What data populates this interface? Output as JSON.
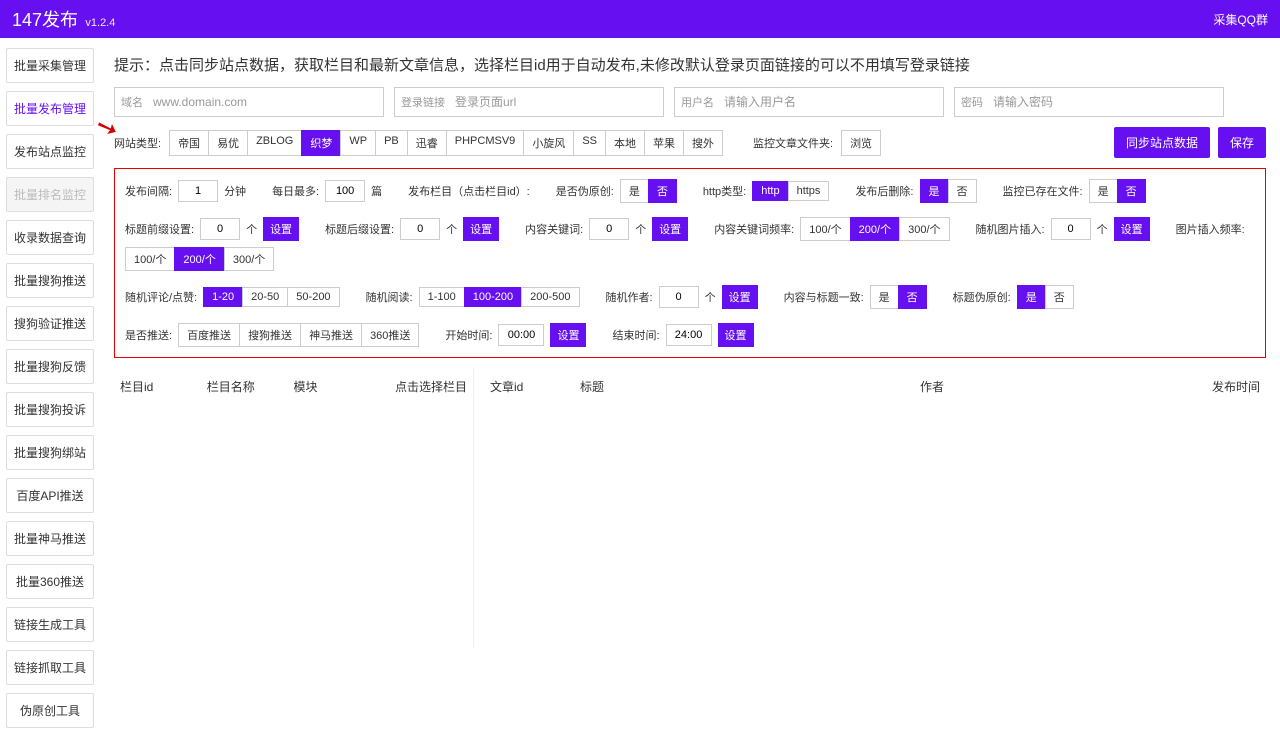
{
  "colors": {
    "primary": "#6610f2",
    "border": "#cccccc",
    "redBox": "#e60000"
  },
  "header": {
    "title": "147发布",
    "version": "v1.2.4",
    "right": "采集QQ群"
  },
  "sidebar": {
    "items": [
      {
        "label": "批量采集管理",
        "state": ""
      },
      {
        "label": "批量发布管理",
        "state": "active"
      },
      {
        "label": "发布站点监控",
        "state": ""
      },
      {
        "label": "批量排名监控",
        "state": "disabled"
      },
      {
        "label": "收录数据查询",
        "state": ""
      },
      {
        "label": "批量搜狗推送",
        "state": ""
      },
      {
        "label": "搜狗验证推送",
        "state": ""
      },
      {
        "label": "批量搜狗反馈",
        "state": ""
      },
      {
        "label": "批量搜狗投诉",
        "state": ""
      },
      {
        "label": "批量搜狗绑站",
        "state": ""
      },
      {
        "label": "百度API推送",
        "state": ""
      },
      {
        "label": "批量神马推送",
        "state": ""
      },
      {
        "label": "批量360推送",
        "state": ""
      },
      {
        "label": "链接生成工具",
        "state": ""
      },
      {
        "label": "链接抓取工具",
        "state": ""
      },
      {
        "label": "伪原创工具",
        "state": ""
      }
    ]
  },
  "hint": "提示：点击同步站点数据，获取栏目和最新文章信息，选择栏目id用于自动发布,未修改默认登录页面链接的可以不用填写登录链接",
  "inputs": {
    "domain": {
      "lbl": "域名",
      "ph": "www.domain.com"
    },
    "login": {
      "lbl": "登录链接",
      "ph": "登录页面url"
    },
    "user": {
      "lbl": "用户名",
      "ph": "请输入用户名"
    },
    "pass": {
      "lbl": "密码",
      "ph": "请输入密码"
    }
  },
  "siteType": {
    "label": "网站类型:",
    "opts": [
      "帝国",
      "易优",
      "ZBLOG",
      "织梦",
      "WP",
      "PB",
      "迅睿",
      "PHPCMSV9",
      "小旋风",
      "SS",
      "本地",
      "苹果",
      "搜外"
    ],
    "active": "织梦"
  },
  "monitorFolder": {
    "label": "监控文章文件夹:",
    "btn": "浏览"
  },
  "actions": {
    "sync": "同步站点数据",
    "save": "保存"
  },
  "cfg1": {
    "interval": {
      "lbl": "发布间隔:",
      "val": "1",
      "unit": "分钟"
    },
    "dailyMax": {
      "lbl": "每日最多:",
      "val": "100",
      "unit": "篇"
    },
    "colId": {
      "lbl": "发布栏目（点击栏目id）:"
    },
    "fakeOrig": {
      "lbl": "是否伪原创:",
      "opts": [
        "是",
        "否"
      ],
      "active": "否"
    },
    "httpType": {
      "lbl": "http类型:",
      "opts": [
        "http",
        "https"
      ],
      "active": "http"
    },
    "delAfter": {
      "lbl": "发布后删除:",
      "opts": [
        "是",
        "否"
      ],
      "active": "是"
    },
    "fileExist": {
      "lbl": "监控已存在文件:",
      "opts": [
        "是",
        "否"
      ],
      "active": "否"
    }
  },
  "cfg2": {
    "titlePre": {
      "lbl": "标题前缀设置:",
      "val": "0",
      "unit": "个",
      "btn": "设置"
    },
    "titleSuf": {
      "lbl": "标题后缀设置:",
      "val": "0",
      "unit": "个",
      "btn": "设置"
    },
    "kw": {
      "lbl": "内容关键词:",
      "val": "0",
      "unit": "个",
      "btn": "设置"
    },
    "kwFreq": {
      "lbl": "内容关键词频率:",
      "opts": [
        "100/个",
        "200/个",
        "300/个"
      ],
      "active": "200/个"
    },
    "randImg": {
      "lbl": "随机图片插入:",
      "val": "0",
      "unit": "个",
      "btn": "设置"
    },
    "imgFreq": {
      "lbl": "图片插入频率:",
      "opts": [
        "100/个",
        "200/个",
        "300/个"
      ],
      "active": "200/个"
    }
  },
  "cfg3": {
    "comment": {
      "lbl": "随机评论/点赞:",
      "opts": [
        "1-20",
        "20-50",
        "50-200"
      ],
      "active": "1-20"
    },
    "read": {
      "lbl": "随机阅读:",
      "opts": [
        "1-100",
        "100-200",
        "200-500"
      ],
      "active": "100-200"
    },
    "author": {
      "lbl": "随机作者:",
      "val": "0",
      "unit": "个",
      "btn": "设置"
    },
    "contentTitle": {
      "lbl": "内容与标题一致:",
      "opts": [
        "是",
        "否"
      ],
      "active": "否"
    },
    "titleFake": {
      "lbl": "标题伪原创:",
      "opts": [
        "是",
        "否"
      ],
      "active": "是"
    }
  },
  "cfg4": {
    "push": {
      "lbl": "是否推送:",
      "opts": [
        "百度推送",
        "搜狗推送",
        "神马推送",
        "360推送"
      ]
    },
    "start": {
      "lbl": "开始时间:",
      "val": "00:00",
      "btn": "设置"
    },
    "end": {
      "lbl": "结束时间:",
      "val": "24:00",
      "btn": "设置"
    }
  },
  "tableL": {
    "cols": [
      "栏目id",
      "栏目名称",
      "模块",
      "点击选择栏目"
    ]
  },
  "tableR": {
    "cols": [
      "文章id",
      "标题",
      "作者",
      "发布时间"
    ]
  }
}
